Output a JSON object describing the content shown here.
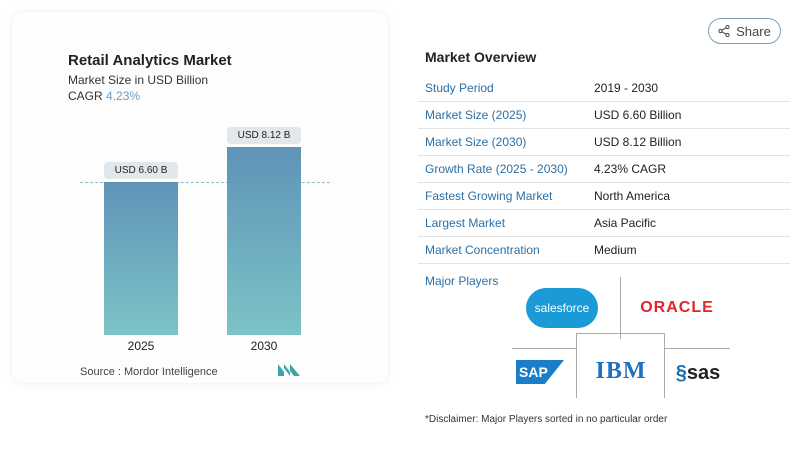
{
  "share": {
    "label": "Share",
    "icon": "share-icon"
  },
  "chart_data": {
    "type": "bar",
    "title": "Retail Analytics Market",
    "subtitle": "Market Size in USD Billion",
    "cagr_label": "CAGR",
    "cagr_value": "4.23%",
    "categories": [
      "2025",
      "2030"
    ],
    "values": [
      6.6,
      8.12
    ],
    "data_labels": [
      "USD 6.60 B",
      "USD 8.12 B"
    ],
    "ylim": [
      0,
      8.12
    ],
    "colors": [
      "#5f93b8",
      "#7cc3c6"
    ],
    "source": "Source :  Mordor Intelligence"
  },
  "overview": {
    "title": "Market Overview",
    "rows": [
      {
        "k": "Study Period",
        "v": "2019 - 2030"
      },
      {
        "k": "Market Size (2025)",
        "v": "USD 6.60 Billion"
      },
      {
        "k": "Market Size (2030)",
        "v": "USD 8.12 Billion"
      },
      {
        "k": "Growth Rate (2025 - 2030)",
        "v": "4.23% CAGR"
      },
      {
        "k": "Fastest Growing Market",
        "v": "North America"
      },
      {
        "k": "Largest Market",
        "v": "Asia Pacific"
      },
      {
        "k": "Market Concentration",
        "v": "Medium"
      }
    ],
    "players_label": "Major Players",
    "players": [
      "salesforce",
      "ORACLE",
      "SAP",
      "IBM",
      "sas"
    ],
    "disclaimer": "*Disclaimer: Major Players sorted in no particular order"
  }
}
